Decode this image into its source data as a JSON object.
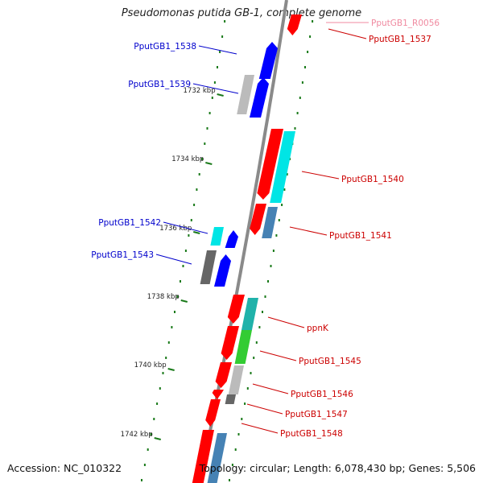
{
  "header": {
    "title": "Pseudomonas putida GB-1, complete genome"
  },
  "footer": {
    "accession": "Accession: NC_010322",
    "summary": "Topology: circular; Length: 6,078,430 bp; Genes: 5,506"
  },
  "colors": {
    "backbone": "#8a8a8a",
    "tick": "#1a7a1a",
    "forward_label": "#0000cc",
    "reverse_label": "#cc0000",
    "rna_label": "#f08aa0",
    "red": "#ff0000",
    "blue": "#0000ff",
    "cyan": "#00e5e5",
    "steel": "#4682b4",
    "gray": "#bbbbbb",
    "dark_gray": "#666666",
    "green": "#33cc33",
    "teal": "#20b2aa",
    "pink": "#ff9aa8"
  },
  "scale_labels": [
    "1732 kbp",
    "1734 kbp",
    "1736 kbp",
    "1738 kbp",
    "1740 kbp",
    "1742 kbp"
  ],
  "gene_labels_forward": [
    "PputGB1_1538",
    "PputGB1_1539",
    "PputGB1_1542",
    "PputGB1_1543"
  ],
  "gene_labels_reverse": [
    "PputGB1_R0056",
    "PputGB1_1537",
    "PputGB1_1540",
    "PputGB1_1541",
    "ppnK",
    "PputGB1_1545",
    "PputGB1_1546",
    "PputGB1_1547",
    "PputGB1_1548"
  ]
}
